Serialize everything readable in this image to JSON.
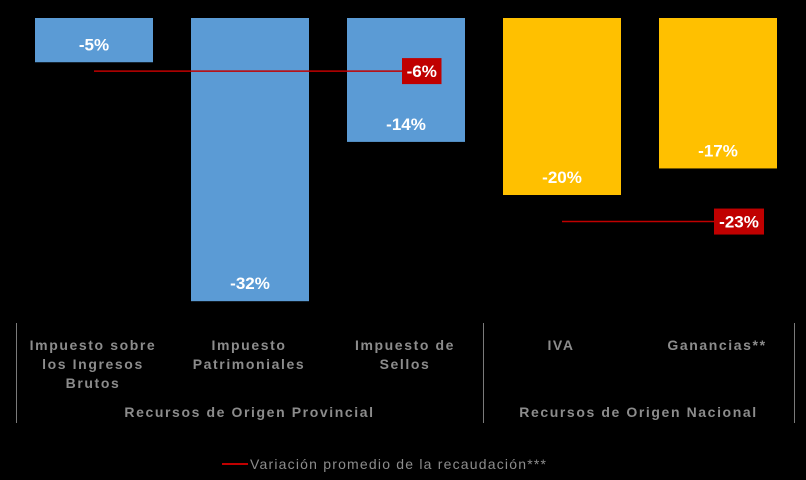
{
  "chart_data": {
    "type": "bar",
    "categories": [
      "Impuesto sobre los Ingresos Brutos",
      "Impuesto Patrimoniales",
      "Impuesto de Sellos",
      "IVA",
      "Ganancias**"
    ],
    "category_labels": [
      "Impuesto sobre\nlos Ingresos\nBrutos",
      "Impuesto\nPatrimoniales",
      "Impuesto de\nSellos",
      "IVA",
      "Ganancias**"
    ],
    "values": [
      -5,
      -32,
      -14,
      -20,
      -17
    ],
    "value_labels": [
      "-5%",
      "-32%",
      "-14%",
      "-20%",
      "-17%"
    ],
    "bar_colors": [
      "#5b9bd5",
      "#5b9bd5",
      "#5b9bd5",
      "#ffc000",
      "#ffc000"
    ],
    "ylim": [
      -35,
      0
    ],
    "groups": [
      {
        "label": "Recursos de Origen Provincial",
        "categories": [
          0,
          1,
          2
        ]
      },
      {
        "label": "Recursos de Origen Nacional",
        "categories": [
          3,
          4
        ]
      }
    ],
    "average_lines": [
      {
        "group": 0,
        "value": -6,
        "label": "-6%"
      },
      {
        "group": 1,
        "value": -23,
        "label": "-23%"
      }
    ],
    "legend": {
      "label": "Variación promedio de la recaudación***",
      "color": "#c00000"
    }
  }
}
